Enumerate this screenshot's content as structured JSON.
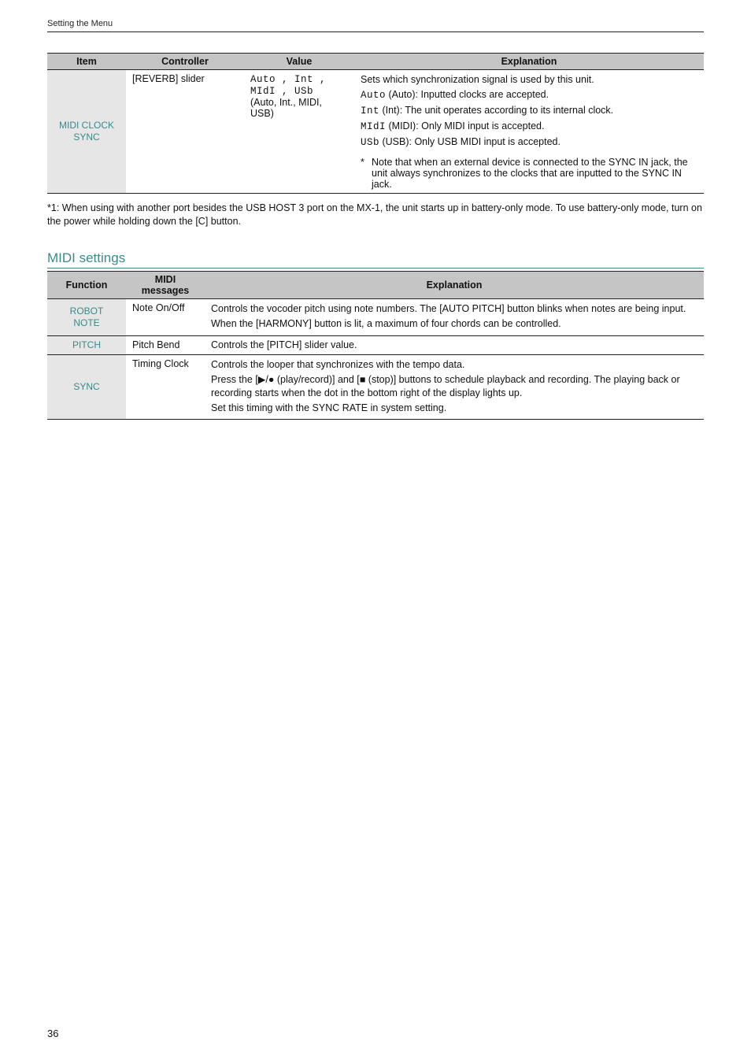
{
  "running_head": "Setting the Menu",
  "page_number": "36",
  "table1": {
    "headers": [
      "Item",
      "Controller",
      "Value",
      "Explanation"
    ],
    "row": {
      "item_l1": "MIDI CLOCK",
      "item_l2": "SYNC",
      "controller": "[REVERB] slider",
      "value_seg1": "Auto , Int ,",
      "value_seg2": "MIdI , USb",
      "value_plain": "(Auto, Int., MIDI, USB)",
      "expl_intro": "Sets which synchronization signal is used by this unit.",
      "expl_auto": " (Auto): Inputted clocks are accepted.",
      "expl_int": " (Int): The unit operates according to its internal clock.",
      "expl_midi": " (MIDI): Only MIDI input is accepted.",
      "expl_usb": " (USB): Only USB MIDI input is accepted.",
      "note": "Note that when an external device is connected to the SYNC IN jack, the unit always synchronizes to the clocks that are inputted to the SYNC IN jack."
    }
  },
  "footnote": "*1: When using with another port besides the USB HOST 3 port on the MX-1, the unit starts up in battery-only mode. To use battery-only mode, turn on the power while holding down the [C] button.",
  "section_title": "MIDI settings",
  "table2": {
    "headers": {
      "function": "Function",
      "midi_l1": "MIDI",
      "midi_l2": "messages",
      "explanation": "Explanation"
    },
    "rows": [
      {
        "fn_l1": "ROBOT",
        "fn_l2": "NOTE",
        "msg": "Note On/Off",
        "expl_l1": "Controls the vocoder pitch using note numbers. The [AUTO PITCH] button blinks when notes are being input.",
        "expl_l2": "When the [HARMONY] button is lit, a maximum of four chords can be controlled."
      },
      {
        "fn": "PITCH",
        "msg": "Pitch Bend",
        "expl": "Controls the [PITCH] slider value."
      },
      {
        "fn": "SYNC",
        "msg": "Timing Clock",
        "expl_l1": "Controls the looper that synchronizes with the tempo data.",
        "expl_l2": "Press the [▶/● (play/record)] and [■ (stop)] buttons to schedule playback and recording. The playing back or recording starts when the dot in the bottom right of the display lights up.",
        "expl_l3": "Set this timing with the SYNC RATE in system setting."
      }
    ]
  },
  "seg_tokens": {
    "auto": "Auto",
    "int": "Int",
    "midi": "MIdI",
    "usb": "USb"
  },
  "ast": "*"
}
